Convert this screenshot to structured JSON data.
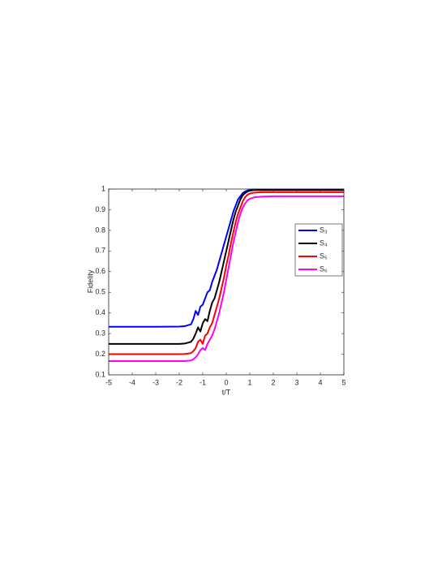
{
  "chart_data": {
    "type": "line",
    "xlabel": "t/T",
    "ylabel": "Fidelity",
    "x": [
      -5,
      -4,
      -3,
      -2,
      -1.75,
      -1.5,
      -1.4,
      -1.3,
      -1.2,
      -1.1,
      -1.0,
      -0.9,
      -0.8,
      -0.7,
      -0.6,
      -0.5,
      -0.4,
      -0.3,
      -0.2,
      -0.1,
      0,
      0.1,
      0.2,
      0.3,
      0.4,
      0.5,
      0.6,
      0.7,
      0.8,
      0.9,
      1.0,
      1.2,
      1.5,
      2,
      3,
      4,
      5
    ],
    "series": [
      {
        "name": "S₃",
        "color": "#0000ff",
        "values": [
          0.333,
          0.333,
          0.333,
          0.334,
          0.336,
          0.345,
          0.37,
          0.41,
          0.39,
          0.43,
          0.44,
          0.47,
          0.5,
          0.51,
          0.55,
          0.58,
          0.61,
          0.65,
          0.69,
          0.73,
          0.77,
          0.81,
          0.85,
          0.89,
          0.92,
          0.95,
          0.965,
          0.98,
          0.988,
          0.993,
          0.996,
          0.998,
          0.998,
          0.998,
          0.998,
          0.998,
          0.998
        ]
      },
      {
        "name": "S₄",
        "color": "#000000",
        "values": [
          0.25,
          0.25,
          0.25,
          0.25,
          0.252,
          0.26,
          0.275,
          0.3,
          0.33,
          0.31,
          0.35,
          0.37,
          0.36,
          0.41,
          0.45,
          0.47,
          0.51,
          0.55,
          0.6,
          0.65,
          0.7,
          0.75,
          0.8,
          0.85,
          0.89,
          0.92,
          0.95,
          0.97,
          0.98,
          0.988,
          0.992,
          0.995,
          0.995,
          0.995,
          0.995,
          0.995,
          0.995
        ]
      },
      {
        "name": "S₅",
        "color": "#ff0000",
        "values": [
          0.2,
          0.2,
          0.2,
          0.2,
          0.201,
          0.205,
          0.215,
          0.23,
          0.26,
          0.27,
          0.25,
          0.29,
          0.3,
          0.33,
          0.35,
          0.39,
          0.43,
          0.47,
          0.52,
          0.57,
          0.63,
          0.68,
          0.74,
          0.79,
          0.84,
          0.88,
          0.91,
          0.94,
          0.96,
          0.972,
          0.978,
          0.983,
          0.985,
          0.985,
          0.985,
          0.985,
          0.985
        ]
      },
      {
        "name": "S₆",
        "color": "#ff00ff",
        "values": [
          0.167,
          0.167,
          0.167,
          0.167,
          0.167,
          0.17,
          0.175,
          0.185,
          0.2,
          0.22,
          0.23,
          0.22,
          0.25,
          0.27,
          0.29,
          0.32,
          0.36,
          0.4,
          0.45,
          0.5,
          0.56,
          0.62,
          0.68,
          0.74,
          0.79,
          0.84,
          0.88,
          0.91,
          0.93,
          0.945,
          0.953,
          0.96,
          0.963,
          0.965,
          0.965,
          0.965,
          0.965
        ]
      }
    ],
    "xlim": [
      -5,
      5
    ],
    "xticks": [
      -5,
      -4,
      -3,
      -2,
      -1,
      0,
      1,
      2,
      3,
      4,
      5
    ],
    "ylim": [
      0.1,
      1
    ],
    "yticks": [
      0.1,
      0.2,
      0.3,
      0.4,
      0.5,
      0.6,
      0.7,
      0.8,
      0.9,
      1
    ],
    "grid": false,
    "legend": "upper right"
  }
}
